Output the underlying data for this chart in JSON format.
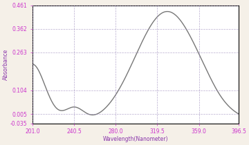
{
  "title": "",
  "xlabel": "Wavelength(Nanometer)",
  "ylabel": "Absorbance",
  "xlim": [
    201.0,
    396.5
  ],
  "ylim": [
    -0.035,
    0.461
  ],
  "xticks": [
    201.0,
    240.5,
    280.0,
    319.5,
    359.0,
    396.5
  ],
  "yticks": [
    -0.035,
    0.005,
    0.104,
    0.263,
    0.362,
    0.461
  ],
  "ytick_labels": [
    "-0.035",
    "0.005",
    "0.104",
    "0.263",
    "0.362",
    "0.461"
  ],
  "background_color": "#f5f0e8",
  "plot_bg_color": "#ffffff",
  "grid_color": "#9988bb",
  "line_color": "#777777",
  "axis_color": "#000000",
  "tick_color": "#cc33cc",
  "label_color": "#8833aa",
  "header_color": "#e8e4f0"
}
